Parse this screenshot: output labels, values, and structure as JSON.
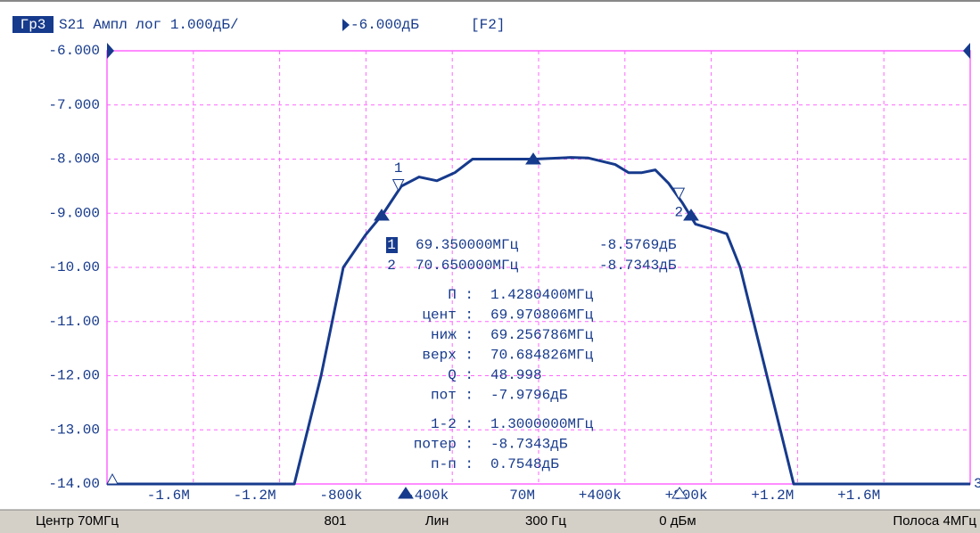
{
  "chart_data": {
    "type": "line",
    "trace_label": "Гр3",
    "title": "S21 Ампл лог 1.000дБ/",
    "reference": "-6.000дБ",
    "channel_key": "[F2]",
    "x": [
      68.0,
      68.868,
      68.992,
      69.095,
      69.198,
      69.281,
      69.364,
      69.446,
      69.529,
      69.612,
      69.694,
      69.818,
      69.983,
      70.149,
      70.231,
      70.355,
      70.417,
      70.479,
      70.541,
      70.603,
      70.665,
      70.727,
      70.81,
      70.872,
      70.934,
      71.058,
      71.182,
      72.0
    ],
    "series": [
      {
        "color": "#163a8c",
        "values": [
          -14,
          -14,
          -12,
          -10,
          -9.4,
          -9.0,
          -8.5,
          -8.33,
          -8.4,
          -8.25,
          -8.0,
          -8.0,
          -8.0,
          -7.97,
          -7.98,
          -8.1,
          -8.25,
          -8.25,
          -8.2,
          -8.45,
          -8.8,
          -9.2,
          -9.3,
          -9.38,
          -10,
          -12,
          -14,
          -14
        ]
      }
    ],
    "xlim": [
      68,
      72
    ],
    "xticks": [
      {
        "value": 68.4,
        "label": "-1.6M"
      },
      {
        "value": 68.8,
        "label": "-1.2M"
      },
      {
        "value": 69.2,
        "label": "-800k"
      },
      {
        "value": 69.6,
        "label": "-400k"
      },
      {
        "value": 70,
        "label": "70M"
      },
      {
        "value": 70.4,
        "label": "+400k"
      },
      {
        "value": 70.8,
        "label": "+800k"
      },
      {
        "value": 71.2,
        "label": "+1.2M"
      },
      {
        "value": 71.6,
        "label": "+1.6M"
      }
    ],
    "ylim": [
      -14,
      -6
    ],
    "yticks": [
      {
        "value": -6,
        "label": "-6.000"
      },
      {
        "value": -7,
        "label": "-7.000"
      },
      {
        "value": -8,
        "label": "-8.000"
      },
      {
        "value": -9,
        "label": "-9.000"
      },
      {
        "value": -10,
        "label": "-10.00"
      },
      {
        "value": -11,
        "label": "-11.00"
      },
      {
        "value": -12,
        "label": "-12.00"
      },
      {
        "value": -13,
        "label": "-13.00"
      },
      {
        "value": -14,
        "label": "-14.00"
      }
    ],
    "grid": true,
    "markers": [
      {
        "label": "1",
        "x": 69.35,
        "y": -8.5769
      },
      {
        "label": "2",
        "x": 70.65,
        "y": -8.7343
      }
    ],
    "right_marker": "3"
  },
  "readout": {
    "markers": [
      {
        "label": "1",
        "freq": "69.350000МГц",
        "value": "-8.5769дБ"
      },
      {
        "label": "2",
        "freq": "70.650000МГц",
        "value": "-8.7343дБ"
      }
    ],
    "stats": [
      {
        "label": "П :",
        "value": "1.4280400МГц"
      },
      {
        "label": "цент :",
        "value": "69.970806МГц"
      },
      {
        "label": "ниж :",
        "value": "69.256786МГц"
      },
      {
        "label": "верх :",
        "value": "70.684826МГц"
      },
      {
        "label": "Q :",
        "value": "48.998"
      },
      {
        "label": "пот :",
        "value": "-7.9796дБ"
      }
    ],
    "delta": [
      {
        "label": "1-2 :",
        "value": "1.3000000МГц"
      },
      {
        "label": "потер :",
        "value": "-8.7343дБ"
      },
      {
        "label": "п-п :",
        "value": "0.7548дБ"
      }
    ]
  },
  "status_bar": [
    "Центр 70МГц",
    "801",
    "Лин",
    "300 Гц",
    "0 дБм",
    "Полоса 4МГц"
  ]
}
